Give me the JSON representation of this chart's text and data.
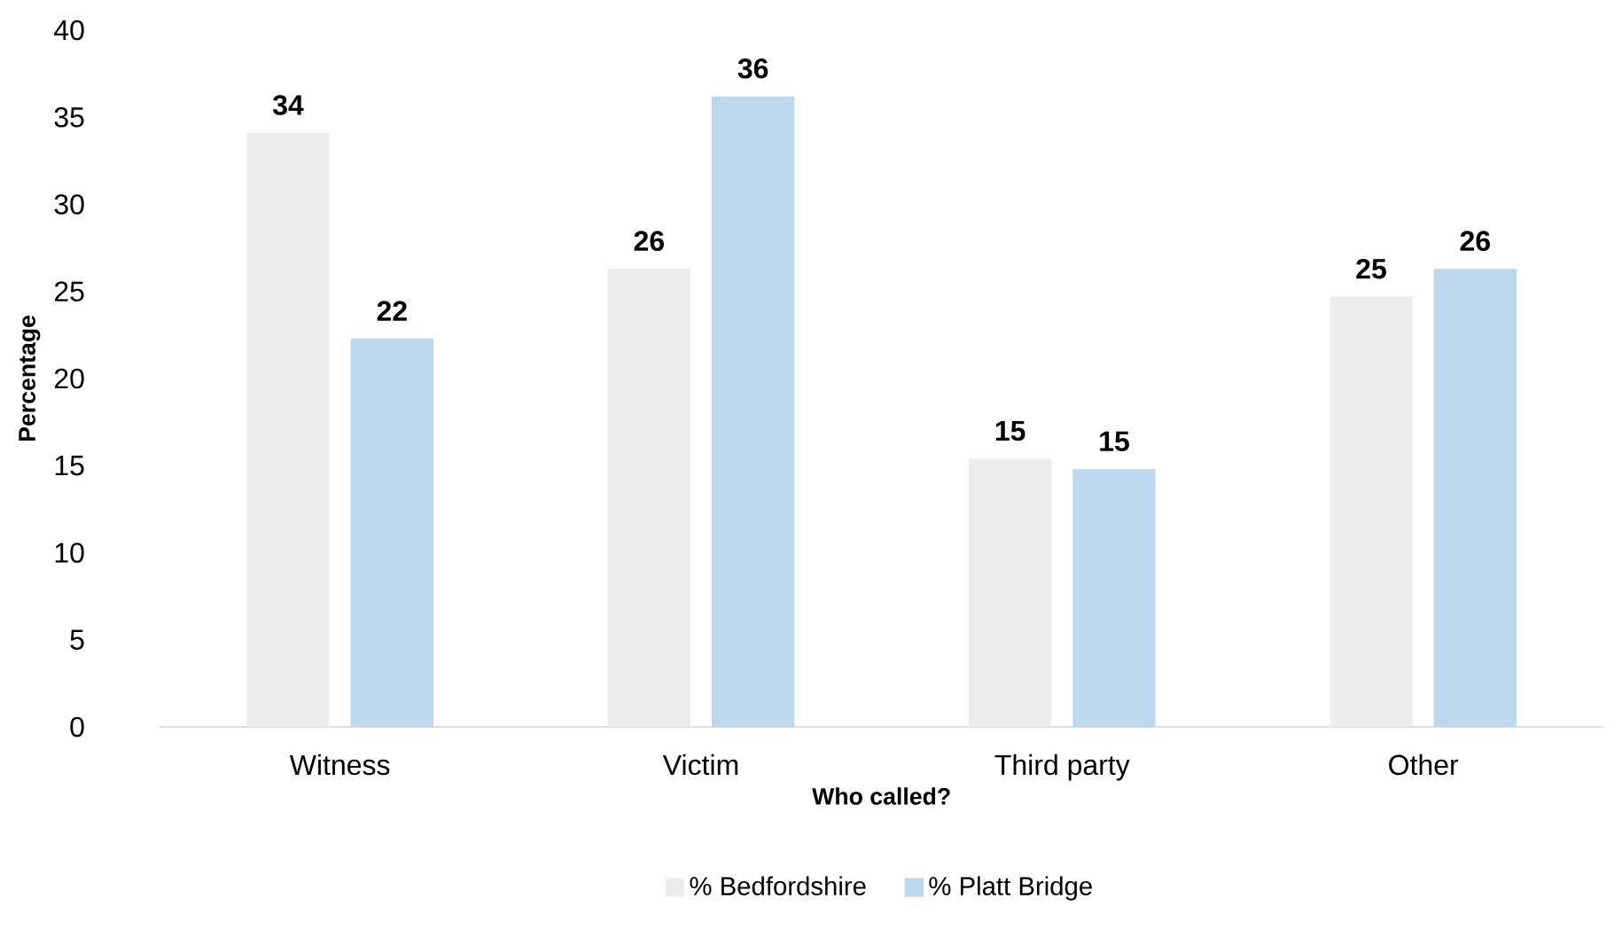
{
  "chart_data": {
    "type": "bar",
    "xlabel": "Who called?",
    "ylabel": "Percentage",
    "categories": [
      "Witness",
      "Victim",
      "Third party",
      "Other"
    ],
    "series": [
      {
        "name": "% Bedfordshire",
        "color": "#ededed",
        "values": [
          34.1,
          26.3,
          15.4,
          24.7
        ],
        "value_labels": [
          "34",
          "26",
          "15",
          "25"
        ]
      },
      {
        "name": "% Platt Bridge",
        "color": "#bdd7ee",
        "values": [
          22.3,
          36.2,
          14.8,
          26.3
        ],
        "value_labels": [
          "22",
          "36",
          "15",
          "26"
        ]
      }
    ],
    "ylim": [
      0,
      40
    ],
    "yticks": [
      0,
      5,
      10,
      15,
      20,
      25,
      30,
      35,
      40
    ],
    "legend": "bottom"
  }
}
